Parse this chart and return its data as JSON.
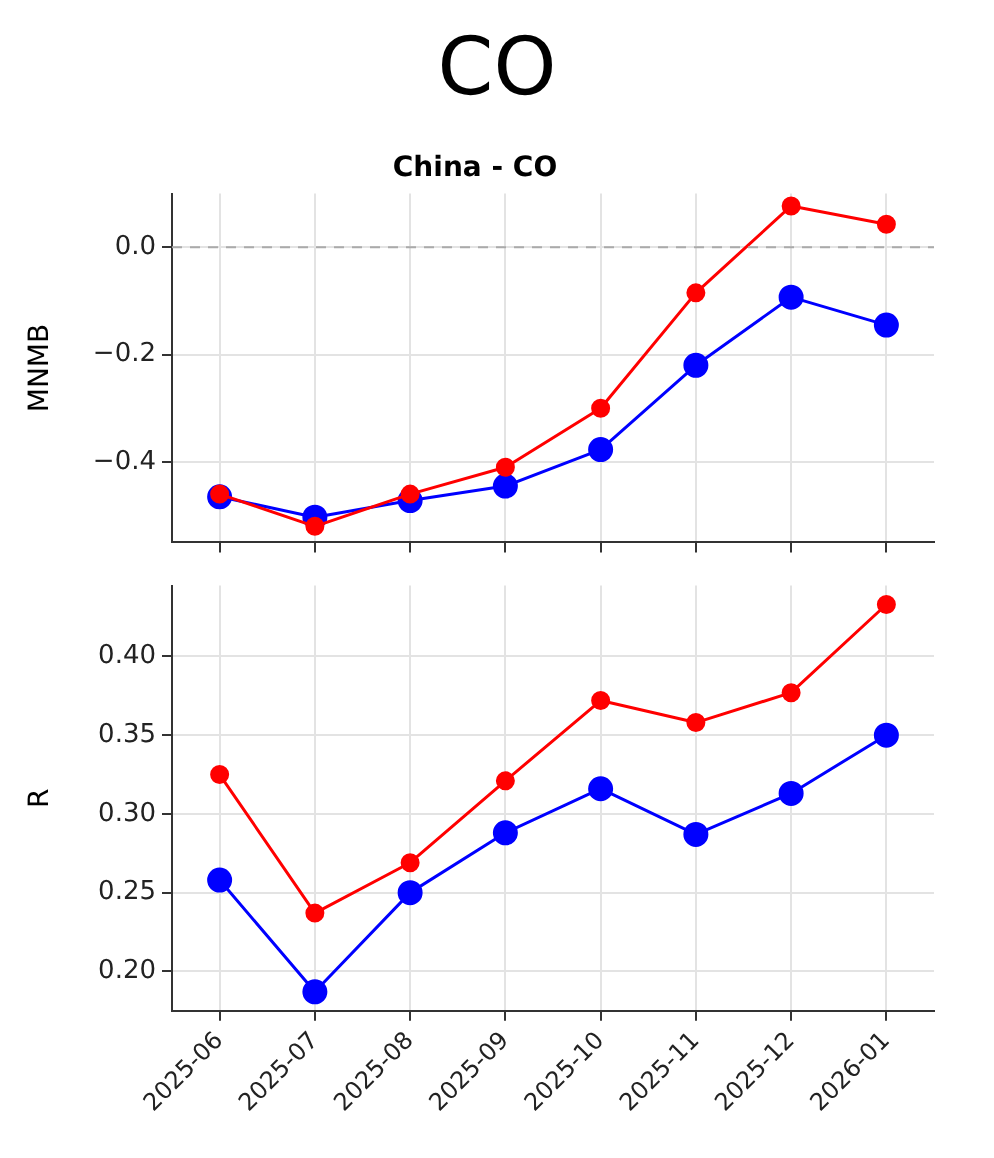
{
  "chart_data": [
    {
      "type": "line",
      "title": "CO",
      "subtitle": "China - CO",
      "ylabel": "MNMB",
      "categories": [
        "2025-06",
        "2025-07",
        "2025-08",
        "2025-09",
        "2025-10",
        "2025-11",
        "2025-12",
        "2026-01"
      ],
      "series": [
        {
          "color": "#ff0000",
          "values": [
            -0.46,
            -0.52,
            -0.46,
            -0.41,
            -0.3,
            -0.085,
            0.077,
            0.043
          ]
        },
        {
          "color": "#0000ff",
          "values": [
            -0.465,
            -0.503,
            -0.472,
            -0.445,
            -0.377,
            -0.22,
            -0.093,
            -0.145
          ]
        }
      ],
      "ylim": [
        -0.55,
        0.1
      ],
      "yticks": [
        {
          "value": -0.4,
          "label": "−0.4"
        },
        {
          "value": -0.2,
          "label": "−0.2"
        },
        {
          "value": 0,
          "label": "0.0"
        }
      ],
      "ref_lines": [
        {
          "axis": "y",
          "value": 0,
          "color": "#aaaaaa",
          "line_style": "dashed"
        }
      ],
      "grid": true,
      "marker": "circle",
      "legend": false,
      "tick_labels": "y"
    },
    {
      "type": "line",
      "ylabel": "R",
      "categories": [
        "2025-06",
        "2025-07",
        "2025-08",
        "2025-09",
        "2025-10",
        "2025-11",
        "2025-12",
        "2026-01"
      ],
      "series": [
        {
          "color": "#ff0000",
          "values": [
            0.325,
            0.237,
            0.269,
            0.321,
            0.372,
            0.358,
            0.377,
            0.433
          ]
        },
        {
          "color": "#0000ff",
          "values": [
            0.258,
            0.187,
            0.25,
            0.288,
            0.316,
            0.287,
            0.313,
            0.35
          ]
        }
      ],
      "ylim": [
        0.175,
        0.445
      ],
      "yticks": [
        {
          "value": 0.2,
          "label": "0.20"
        },
        {
          "value": 0.25,
          "label": "0.25"
        },
        {
          "value": 0.3,
          "label": "0.30"
        },
        {
          "value": 0.35,
          "label": "0.35"
        },
        {
          "value": 0.4,
          "label": "0.40"
        }
      ],
      "grid": true,
      "marker": "circle",
      "legend": false
    }
  ]
}
